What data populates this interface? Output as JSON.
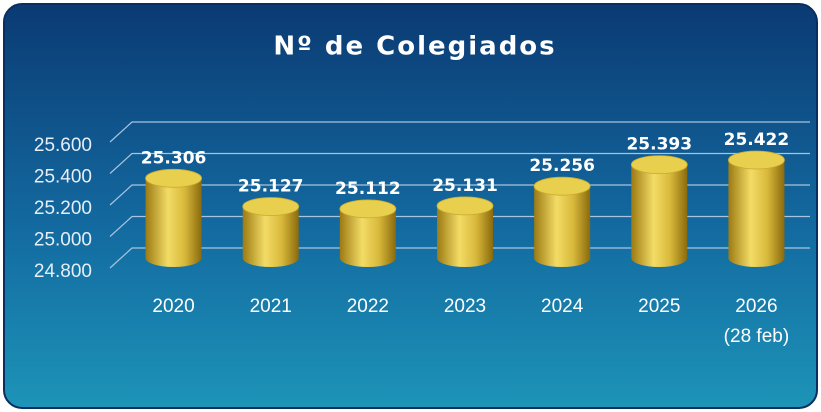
{
  "chart_data": {
    "type": "bar",
    "title": "Nº de Colegiados",
    "categories": [
      "2020",
      "2021",
      "2022",
      "2023",
      "2024",
      "2025",
      "2026\n(28 feb)"
    ],
    "values": [
      25306,
      25127,
      25112,
      25131,
      25256,
      25393,
      25422
    ],
    "value_labels": [
      "25.306",
      "25.127",
      "25.112",
      "25.131",
      "25.256",
      "25.393",
      "25.422"
    ],
    "color": "#e0c040",
    "ylim": [
      24800,
      25600
    ],
    "yticks": [
      {
        "value": 24800,
        "label": "24.800"
      },
      {
        "value": 25000,
        "label": "25.000"
      },
      {
        "value": 25200,
        "label": "25.200"
      },
      {
        "value": 25400,
        "label": "25.400"
      },
      {
        "value": 25600,
        "label": "25.600"
      }
    ],
    "grid": true
  }
}
